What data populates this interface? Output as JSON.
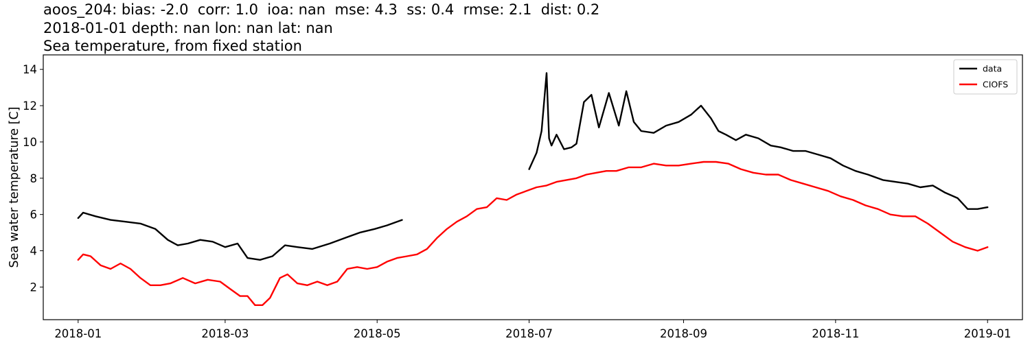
{
  "title_lines": [
    "aoos_204: bias: -2.0  corr: 1.0  ioa: nan  mse: 4.3  ss: 0.4  rmse: 2.1  dist: 0.2",
    "2018-01-01 depth: nan lon: nan lat: nan",
    "Sea temperature, from fixed station"
  ],
  "chart_data": {
    "type": "line",
    "ylabel": "Sea water temperature [C]",
    "xlabel": "",
    "x_range": [
      "2017-12-18",
      "2019-01-15"
    ],
    "ylim": [
      0.2,
      14.8
    ],
    "x_ticks": [
      "2018-01",
      "2018-03",
      "2018-05",
      "2018-07",
      "2018-09",
      "2018-11",
      "2019-01"
    ],
    "x_tick_dates": [
      "2018-01-01",
      "2018-03-01",
      "2018-05-01",
      "2018-07-01",
      "2018-09-01",
      "2018-11-01",
      "2019-01-01"
    ],
    "y_ticks": [
      2,
      4,
      6,
      8,
      10,
      12,
      14
    ],
    "legend": {
      "placement": "top-right"
    },
    "series": [
      {
        "name": "data",
        "color": "#000000",
        "segments": [
          {
            "x": [
              "2018-01-01",
              "2018-01-03",
              "2018-01-08",
              "2018-01-14",
              "2018-01-20",
              "2018-01-26",
              "2018-02-01",
              "2018-02-06",
              "2018-02-10",
              "2018-02-14",
              "2018-02-19",
              "2018-02-24",
              "2018-03-01",
              "2018-03-06",
              "2018-03-10",
              "2018-03-15",
              "2018-03-20",
              "2018-03-25",
              "2018-03-30",
              "2018-04-05",
              "2018-04-12",
              "2018-04-18",
              "2018-04-24",
              "2018-04-30",
              "2018-05-05",
              "2018-05-09",
              "2018-05-11"
            ],
            "y": [
              5.8,
              6.1,
              5.9,
              5.7,
              5.6,
              5.5,
              5.2,
              4.6,
              4.3,
              4.4,
              4.6,
              4.5,
              4.2,
              4.4,
              3.6,
              3.5,
              3.7,
              4.3,
              4.2,
              4.1,
              4.4,
              4.7,
              5.0,
              5.2,
              5.4,
              5.6,
              5.7
            ]
          },
          {
            "x": [
              "2018-07-01",
              "2018-07-04",
              "2018-07-06",
              "2018-07-08",
              "2018-07-09",
              "2018-07-10",
              "2018-07-12",
              "2018-07-15",
              "2018-07-18",
              "2018-07-20",
              "2018-07-23",
              "2018-07-26",
              "2018-07-29",
              "2018-08-02",
              "2018-08-06",
              "2018-08-09",
              "2018-08-12",
              "2018-08-15",
              "2018-08-20",
              "2018-08-25",
              "2018-08-30",
              "2018-09-04",
              "2018-09-08",
              "2018-09-12",
              "2018-09-15",
              "2018-09-18",
              "2018-09-22",
              "2018-09-26",
              "2018-10-01",
              "2018-10-06",
              "2018-10-10",
              "2018-10-15",
              "2018-10-20",
              "2018-10-25",
              "2018-10-30",
              "2018-11-04",
              "2018-11-09",
              "2018-11-14",
              "2018-11-20",
              "2018-11-25",
              "2018-11-30",
              "2018-12-05",
              "2018-12-10",
              "2018-12-15",
              "2018-12-20",
              "2018-12-24",
              "2018-12-28",
              "2019-01-01"
            ],
            "y": [
              8.5,
              9.4,
              10.6,
              13.8,
              10.2,
              9.8,
              10.4,
              9.6,
              9.7,
              9.9,
              12.2,
              12.6,
              10.8,
              12.7,
              10.9,
              12.8,
              11.1,
              10.6,
              10.5,
              10.9,
              11.1,
              11.5,
              12.0,
              11.3,
              10.6,
              10.4,
              10.1,
              10.4,
              10.2,
              9.8,
              9.7,
              9.5,
              9.5,
              9.3,
              9.1,
              8.7,
              8.4,
              8.2,
              7.9,
              7.8,
              7.7,
              7.5,
              7.6,
              7.2,
              6.9,
              6.3,
              6.3,
              6.4
            ]
          }
        ]
      },
      {
        "name": "CIOFS",
        "color": "#ff0000",
        "segments": [
          {
            "x": [
              "2018-01-01",
              "2018-01-03",
              "2018-01-06",
              "2018-01-10",
              "2018-01-14",
              "2018-01-18",
              "2018-01-22",
              "2018-01-26",
              "2018-01-30",
              "2018-02-03",
              "2018-02-07",
              "2018-02-12",
              "2018-02-17",
              "2018-02-22",
              "2018-02-27",
              "2018-03-03",
              "2018-03-07",
              "2018-03-10",
              "2018-03-13",
              "2018-03-16",
              "2018-03-19",
              "2018-03-23",
              "2018-03-26",
              "2018-03-30",
              "2018-04-03",
              "2018-04-07",
              "2018-04-11",
              "2018-04-15",
              "2018-04-19",
              "2018-04-23",
              "2018-04-27",
              "2018-05-01",
              "2018-05-05",
              "2018-05-09",
              "2018-05-13",
              "2018-05-17",
              "2018-05-21",
              "2018-05-25",
              "2018-05-29",
              "2018-06-02",
              "2018-06-06",
              "2018-06-10",
              "2018-06-14",
              "2018-06-18",
              "2018-06-22",
              "2018-06-26",
              "2018-06-30",
              "2018-07-04",
              "2018-07-08",
              "2018-07-12",
              "2018-07-16",
              "2018-07-20",
              "2018-07-24",
              "2018-07-28",
              "2018-08-01",
              "2018-08-05",
              "2018-08-10",
              "2018-08-15",
              "2018-08-20",
              "2018-08-25",
              "2018-08-30",
              "2018-09-04",
              "2018-09-09",
              "2018-09-14",
              "2018-09-19",
              "2018-09-24",
              "2018-09-29",
              "2018-10-04",
              "2018-10-09",
              "2018-10-14",
              "2018-10-19",
              "2018-10-24",
              "2018-10-29",
              "2018-11-03",
              "2018-11-08",
              "2018-11-13",
              "2018-11-18",
              "2018-11-23",
              "2018-11-28",
              "2018-12-03",
              "2018-12-08",
              "2018-12-13",
              "2018-12-18",
              "2018-12-23",
              "2018-12-28",
              "2019-01-01"
            ],
            "y": [
              3.5,
              3.8,
              3.7,
              3.2,
              3.0,
              3.3,
              3.0,
              2.5,
              2.1,
              2.1,
              2.2,
              2.5,
              2.2,
              2.4,
              2.3,
              1.9,
              1.5,
              1.5,
              1.0,
              1.0,
              1.4,
              2.5,
              2.7,
              2.2,
              2.1,
              2.3,
              2.1,
              2.3,
              3.0,
              3.1,
              3.0,
              3.1,
              3.4,
              3.6,
              3.7,
              3.8,
              4.1,
              4.7,
              5.2,
              5.6,
              5.9,
              6.3,
              6.4,
              6.9,
              6.8,
              7.1,
              7.3,
              7.5,
              7.6,
              7.8,
              7.9,
              8.0,
              8.2,
              8.3,
              8.4,
              8.4,
              8.6,
              8.6,
              8.8,
              8.7,
              8.7,
              8.8,
              8.9,
              8.9,
              8.8,
              8.5,
              8.3,
              8.2,
              8.2,
              7.9,
              7.7,
              7.5,
              7.3,
              7.0,
              6.8,
              6.5,
              6.3,
              6.0,
              5.9,
              5.9,
              5.5,
              5.0,
              4.5,
              4.2,
              4.0,
              4.2
            ]
          }
        ]
      }
    ]
  }
}
